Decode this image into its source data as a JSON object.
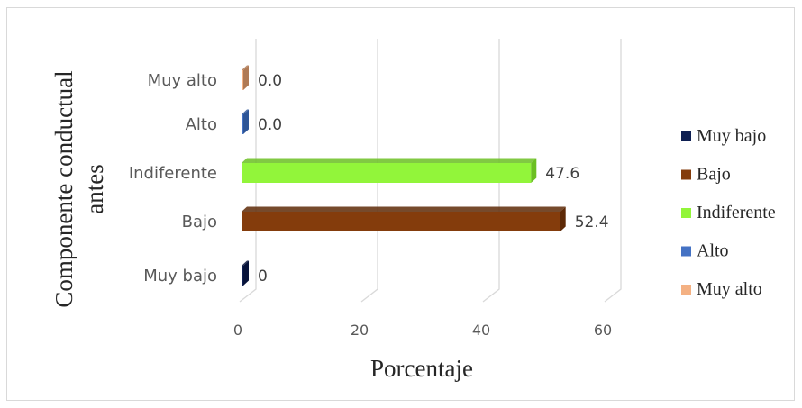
{
  "chart_data": {
    "type": "bar",
    "orientation": "horizontal",
    "style": "3d",
    "categories": [
      "Muy bajo",
      "Bajo",
      "Indiferente",
      "Alto",
      "Muy alto"
    ],
    "values": [
      0,
      52.4,
      47.6,
      0.0,
      0.0
    ],
    "value_labels": [
      "0",
      "52.4",
      "47.6",
      "0.0",
      "0.0"
    ],
    "colors": [
      "#0e1f52",
      "#843c0c",
      "#92f53a",
      "#4472c4",
      "#f4b183"
    ],
    "side_colors": [
      "#07133a",
      "#5e2a07",
      "#6bbf22",
      "#2d5597",
      "#b07a55"
    ],
    "xlabel": "Porcentaje",
    "ylabel_lines": [
      "Componente conductual",
      "antes"
    ],
    "xlim": [
      0,
      60
    ],
    "xticks": [
      0,
      20,
      40,
      60
    ],
    "grid": true,
    "legend": {
      "position": "right",
      "entries": [
        "Muy bajo",
        "Bajo",
        "Indiferente",
        "Alto",
        "Muy alto"
      ]
    }
  }
}
